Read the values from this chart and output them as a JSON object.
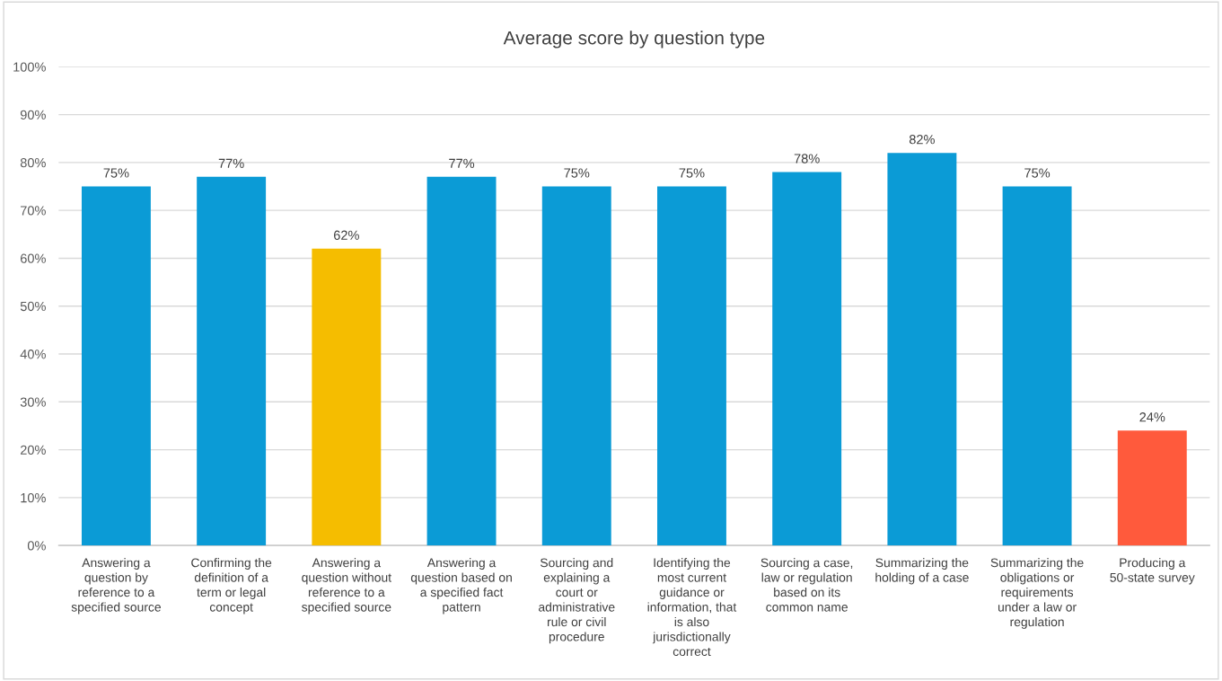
{
  "chart_data": {
    "type": "bar",
    "title": "Average score by question type",
    "categories": [
      "Answering a question by reference to a specified source",
      "Confirming the definition of a term or legal concept",
      "Answering a question without reference to a specified source",
      "Answering a question based on a specified fact pattern",
      "Sourcing and explaining a court or administrative rule or civil procedure",
      "Identifying the most current guidance or information, that is also jurisdictionally correct",
      "Sourcing a case, law or regulation based on its common name",
      "Summarizing the holding of a case",
      "Summarizing the obligations or requirements under a law or regulation",
      "Producing a 50-state survey"
    ],
    "values": [
      75,
      77,
      62,
      77,
      75,
      75,
      78,
      82,
      75,
      24
    ],
    "colors": [
      "#0b9bd6",
      "#0b9bd6",
      "#f5bd00",
      "#0b9bd6",
      "#0b9bd6",
      "#0b9bd6",
      "#0b9bd6",
      "#0b9bd6",
      "#0b9bd6",
      "#ff5a3c"
    ],
    "value_labels": [
      "75%",
      "77%",
      "62%",
      "77%",
      "75%",
      "75%",
      "78%",
      "82%",
      "75%",
      "24%"
    ],
    "ylim": [
      0,
      100
    ],
    "yticks": [
      {
        "value": 0,
        "label": "0%"
      },
      {
        "value": 10,
        "label": "10%"
      },
      {
        "value": 20,
        "label": "20%"
      },
      {
        "value": 30,
        "label": "30%"
      },
      {
        "value": 40,
        "label": "40%"
      },
      {
        "value": 50,
        "label": "50%"
      },
      {
        "value": 60,
        "label": "60%"
      },
      {
        "value": 70,
        "label": "70%"
      },
      {
        "value": 80,
        "label": "80%"
      },
      {
        "value": 90,
        "label": "90%"
      },
      {
        "value": 100,
        "label": "100%"
      }
    ],
    "grid": "y",
    "legend": false
  }
}
